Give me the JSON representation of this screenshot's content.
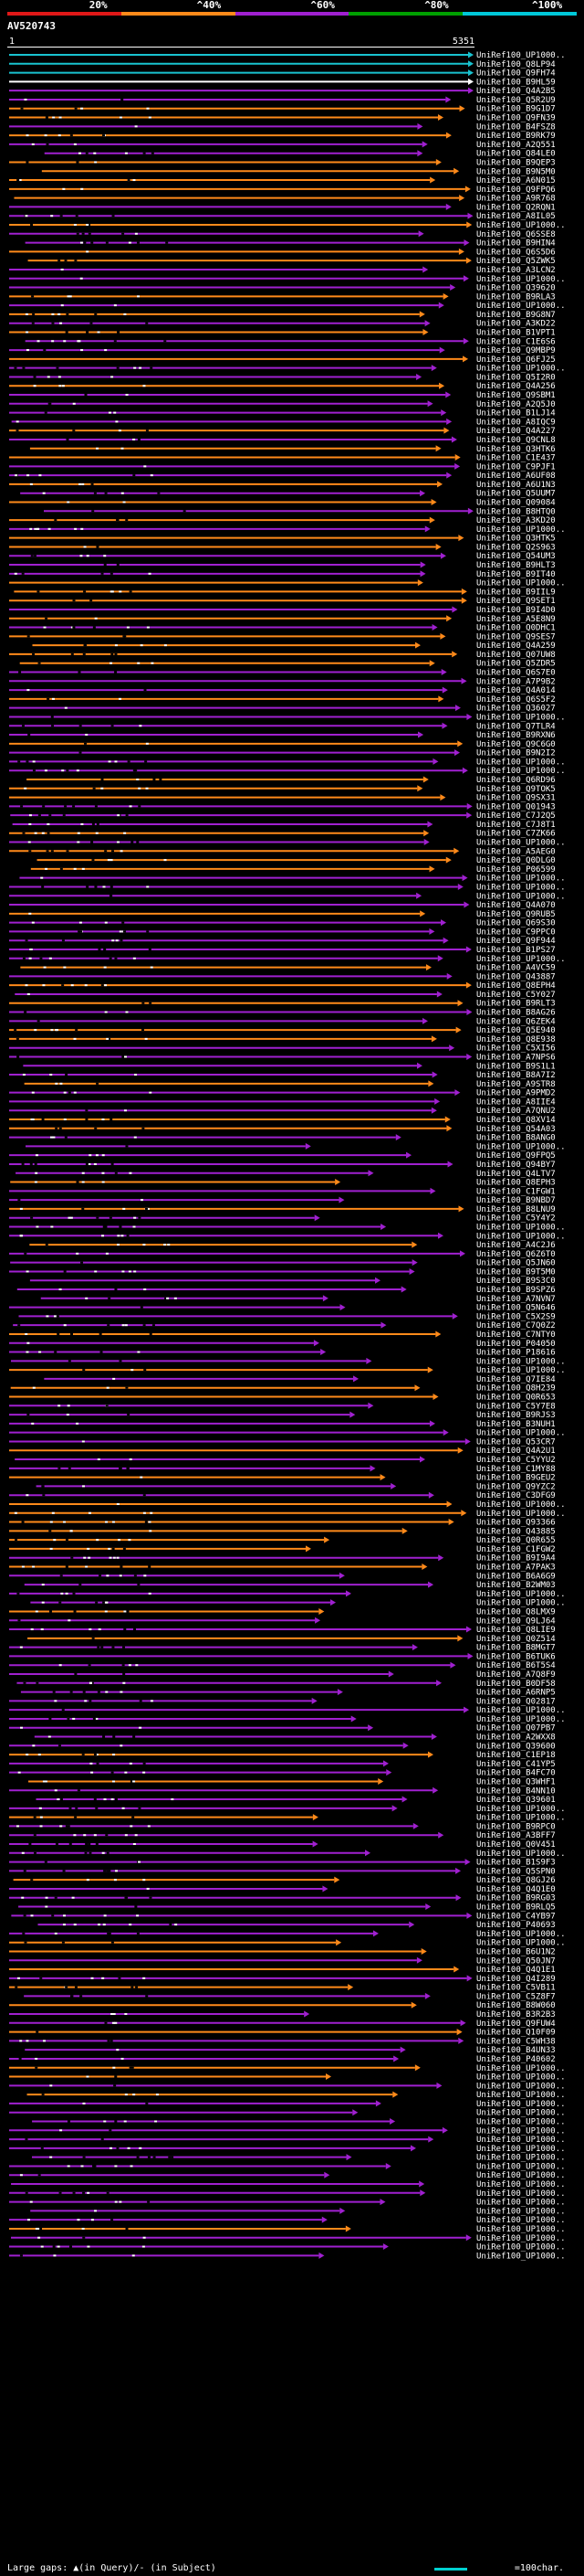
{
  "legend": {
    "labels": [
      "20%",
      "^40%",
      "^60%",
      "^80%",
      "^100%"
    ],
    "colors": [
      "#e01818",
      "#ff8a1a",
      "#a020d0",
      "#00a000",
      "#00c8d8"
    ]
  },
  "query": {
    "title": "AV520743",
    "start": "1",
    "end": "5351"
  },
  "subjects": [
    "UniRef100_UP1000..",
    "UniRef100_Q8LP94",
    "UniRef100_Q9FH74",
    "UniRef100_B9HL59",
    "UniRef100_Q4A2B5",
    "UniRef100_Q5R2U9",
    "UniRef100_B9G1D7",
    "UniRef100_Q9FN39",
    "UniRef100_B4FSZ8",
    "UniRef100_B9RK79",
    "UniRef100_A2Q551",
    "UniRef100_Q84LE0",
    "UniRef100_B9QEP3",
    "UniRef100_B9N5M0",
    "UniRef100_A6N015",
    "UniRef100_Q9FPQ6",
    "UniRef100_A9R768",
    "UniRef100_Q2RQN1",
    "UniRef100_A8IL05",
    "UniRef100_UP1000..",
    "UniRef100_Q6SSE8",
    "UniRef100_B9HIN4",
    "UniRef100_Q6S5D6",
    "UniRef100_Q5ZWK5",
    "UniRef100_A3LCN2",
    "UniRef100_UP1000..",
    "UniRef100_Q39620",
    "UniRef100_B9RLA3",
    "UniRef100_UP1000..",
    "UniRef100_B9G8N7",
    "UniRef100_A3KD22",
    "UniRef100_B1VPT1",
    "UniRef100_C1E6S6",
    "UniRef100_Q9MBP9",
    "UniRef100_Q6FJ25",
    "UniRef100_UP1000..",
    "UniRef100_Q5I2R0",
    "UniRef100_Q4A256",
    "UniRef100_Q9SBM1",
    "UniRef100_A2Q5J0",
    "UniRef100_B1LJ14",
    "UniRef100_A8IQC9",
    "UniRef100_Q4A227",
    "UniRef100_Q9CNL8",
    "UniRef100_Q3HTK6",
    "UniRef100_C1E437",
    "UniRef100_C9PJF1",
    "UniRef100_A6UF08",
    "UniRef100_A6U1N3",
    "UniRef100_Q5UUM7",
    "UniRef100_Q09084",
    "UniRef100_B8HTQ0",
    "UniRef100_A3KD20",
    "UniRef100_UP1000..",
    "UniRef100_Q3HTK5",
    "UniRef100_Q2S963",
    "UniRef100_Q54UM3",
    "UniRef100_B9HLT3",
    "UniRef100_B9IT40",
    "UniRef100_UP1000..",
    "UniRef100_B9IIL9",
    "UniRef100_Q9SET1",
    "UniRef100_B9I4D0",
    "UniRef100_A5E8N9",
    "UniRef100_Q0DHC1",
    "UniRef100_Q9SES7",
    "UniRef100_Q4A259",
    "UniRef100_Q07UW8",
    "UniRef100_Q5ZDR5",
    "UniRef100_Q6S7E0",
    "UniRef100_A7P9B2",
    "UniRef100_Q4A014",
    "UniRef100_Q6S5F2",
    "UniRef100_Q36027",
    "UniRef100_UP1000..",
    "UniRef100_Q7TLR4",
    "UniRef100_B9RXN6",
    "UniRef100_Q9C6G0",
    "UniRef100_B9N2I2",
    "UniRef100_UP1000..",
    "UniRef100_UP1000..",
    "UniRef100_Q6RD96",
    "UniRef100_Q9TOK5",
    "UniRef100_Q9SX31",
    "UniRef100_Q01943",
    "UniRef100_C7J2Q5",
    "UniRef100_C7J8T1",
    "UniRef100_C7ZK66",
    "UniRef100_UP1000..",
    "UniRef100_A5AEG0",
    "UniRef100_Q0DLG0",
    "UniRef100_P06599",
    "UniRef100_UP1000..",
    "UniRef100_UP1000..",
    "UniRef100_UP1000..",
    "UniRef100_Q4A070",
    "UniRef100_Q9RUB5",
    "UniRef100_Q69S30",
    "UniRef100_C9PPC0",
    "UniRef100_Q9F944",
    "UniRef100_B1PS27",
    "UniRef100_UP1000..",
    "UniRef100_A4VC59",
    "UniRef100_Q43887",
    "UniRef100_Q8EPH4",
    "UniRef100_C5Y027",
    "UniRef100_B9RLT3",
    "UniRef100_B8AG26",
    "UniRef100_Q6ZEK4",
    "UniRef100_Q5E940",
    "UniRef100_Q8E938",
    "UniRef100_C5XI56",
    "UniRef100_A7NPS6",
    "UniRef100_B9S1L1",
    "UniRef100_B8A7I2",
    "UniRef100_A9STR8",
    "UniRef100_A9PMD2",
    "UniRef100_A8IIE4",
    "UniRef100_A7QNU2",
    "UniRef100_Q8XV14",
    "UniRef100_Q54A03",
    "UniRef100_B8ANG0",
    "UniRef100_UP1000..",
    "UniRef100_Q9FPQ5",
    "UniRef100_Q94BY7",
    "UniRef100_Q4LTV7",
    "UniRef100_Q8EPH3",
    "UniRef100_C1FGW1",
    "UniRef100_B9NBD7",
    "UniRef100_B8LNU9",
    "UniRef100_C5Y4Y2",
    "UniRef100_UP1000..",
    "UniRef100_UP1000..",
    "UniRef100_A4C2J6",
    "UniRef100_Q6Z6T0",
    "UniRef100_Q5JN60",
    "UniRef100_B9T5M0",
    "UniRef100_B9S3C0",
    "UniRef100_B9SPZ6",
    "UniRef100_A7NVN7",
    "UniRef100_Q5N646",
    "UniRef100_C5X2S9",
    "UniRef100_C7Q0Z2",
    "UniRef100_C7NTY0",
    "UniRef100_P04050",
    "UniRef100_P18616",
    "UniRef100_UP1000..",
    "UniRef100_UP1000..",
    "UniRef100_Q7IE84",
    "UniRef100_Q8H239",
    "UniRef100_Q0R653",
    "UniRef100_C5Y7E8",
    "UniRef100_B9RJS3",
    "UniRef100_B3NUH1",
    "UniRef100_UP1000..",
    "UniRef100_Q53CR7",
    "UniRef100_Q4A2U1",
    "UniRef100_C5YYU2",
    "UniRef100_C1MY88",
    "UniRef100_B9GEU2",
    "UniRef100_Q9YZC2",
    "UniRef100_C3DFG9",
    "UniRef100_UP1000..",
    "UniRef100_UP1000..",
    "UniRef100_Q93366",
    "UniRef100_Q43885",
    "UniRef100_Q0R655",
    "UniRef100_C1FGW2",
    "UniRef100_B9I9A4",
    "UniRef100_A7PAK3",
    "UniRef100_B6A6G9",
    "UniRef100_B2WM03",
    "UniRef100_UP1000..",
    "UniRef100_UP1000..",
    "UniRef100_Q8LMX9",
    "UniRef100_Q9LJ64",
    "UniRef100_Q8LIE9",
    "UniRef100_Q0Z514",
    "UniRef100_B8MGT7",
    "UniRef100_B6TUK6",
    "UniRef100_B6T5S4",
    "UniRef100_A7Q8F9",
    "UniRef100_B0DF58",
    "UniRef100_A6RNP5",
    "UniRef100_Q02817",
    "UniRef100_UP1000..",
    "UniRef100_UP1000..",
    "UniRef100_Q07PB7",
    "UniRef100_A2WXX8",
    "UniRef100_Q39600",
    "UniRef100_C1EP18",
    "UniRef100_C41YP5",
    "UniRef100_B4FC70",
    "UniRef100_Q3WHF1",
    "UniRef100_B4NN10",
    "UniRef100_Q39601",
    "UniRef100_UP1000..",
    "UniRef100_UP1000..",
    "UniRef100_B9RPC0",
    "UniRef100_A3BFF7",
    "UniRef100_Q0V451",
    "UniRef100_UP1000..",
    "UniRef100_B1S9F3",
    "UniRef100_Q5SPN0",
    "UniRef100_Q8GJ26",
    "UniRef100_Q4Q1E0",
    "UniRef100_B9RG03",
    "UniRef100_B9RLQ5",
    "UniRef100_C4YB97",
    "UniRef100_P40693",
    "UniRef100_UP1000..",
    "UniRef100_UP1000..",
    "UniRef100_B6U1N2",
    "UniRef100_Q50JN7",
    "UniRef100_Q4Q1E1",
    "UniRef100_Q4I289",
    "UniRef100_C5VB11",
    "UniRef100_C5Z8F7",
    "UniRef100_B8W060",
    "UniRef100_B3R2B3",
    "UniRef100_Q9FUW4",
    "UniRef100_Q10F09",
    "UniRef100_C5WH38",
    "UniRef100_B4UN33",
    "UniRef100_P40602",
    "UniRef100_UP1000..",
    "UniRef100_UP1000..",
    "UniRef100_UP1000..",
    "UniRef100_UP1000..",
    "UniRef100_UP1000..",
    "UniRef100_UP1000..",
    "UniRef100_UP1000..",
    "UniRef100_UP1000..",
    "UniRef100_UP1000..",
    "UniRef100_UP1000..",
    "UniRef100_UP1000..",
    "UniRef100_UP1000..",
    "UniRef100_UP1000..",
    "UniRef100_UP1000..",
    "UniRef100_UP1000..",
    "UniRef100_UP1000..",
    "UniRef100_UP1000..",
    "UniRef100_UP1000..",
    "UniRef100_UP1000..",
    "UniRef100_UP1000..",
    "UniRef100_UP1000..",
    "UniRef100_UP1000.."
  ],
  "footer": {
    "legend_text": "Large gaps: ▲(in Query)/- (in Subject)",
    "scale_text": "=100char."
  }
}
